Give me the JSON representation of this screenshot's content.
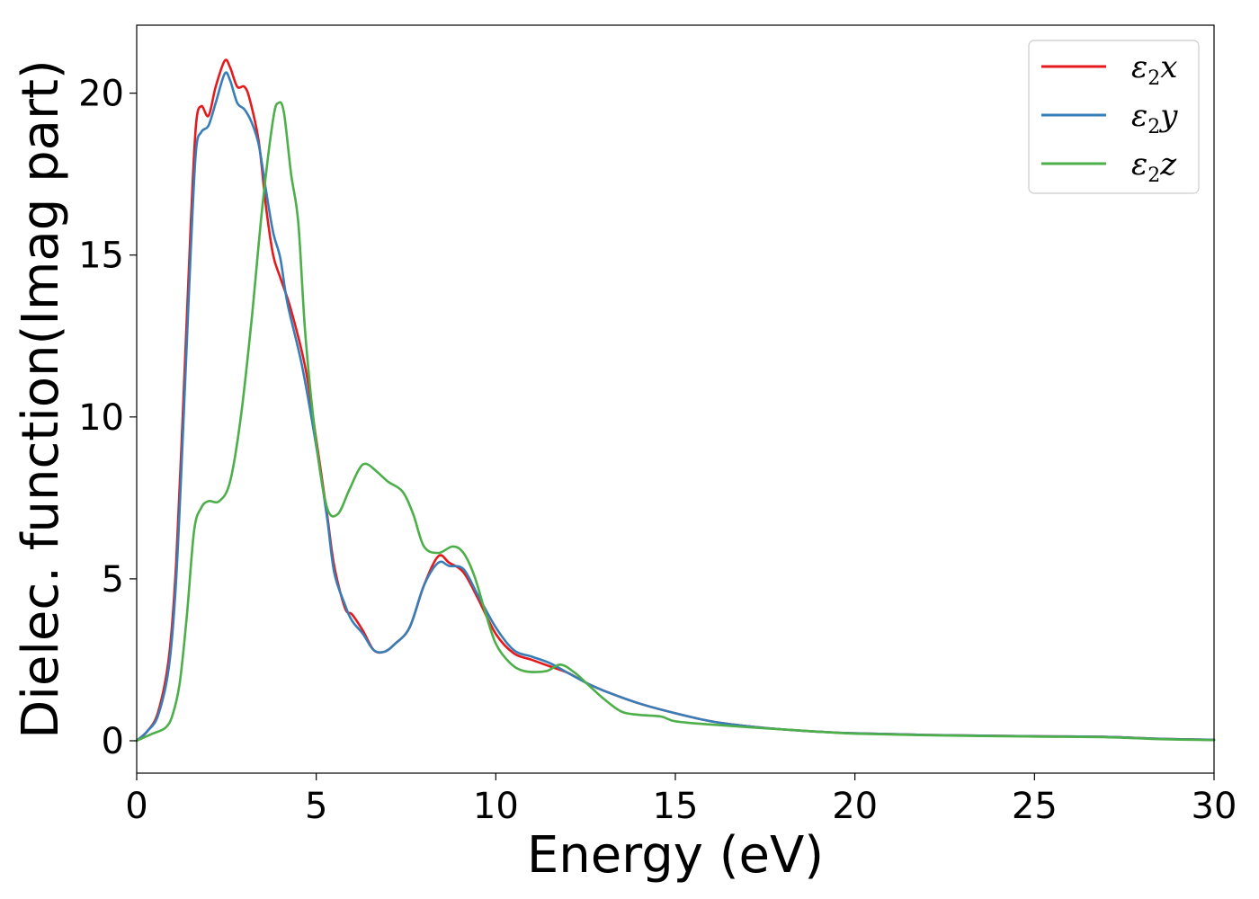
{
  "chart_data": {
    "type": "line",
    "title": "",
    "xlabel": "Energy (eV)",
    "ylabel": "Dielec. function(Imag part)",
    "xlim": [
      0,
      30
    ],
    "ylim": [
      -1,
      22.1
    ],
    "xticks": [
      0,
      5,
      10,
      15,
      20,
      25,
      30
    ],
    "yticks": [
      0,
      5,
      10,
      15,
      20
    ],
    "grid": false,
    "legend_position": "top-right",
    "series": [
      {
        "name": "ε2x",
        "legend_base": "ε",
        "legend_sub": "2",
        "legend_var": "x",
        "color": "#e41a1c",
        "points": [
          [
            0,
            0
          ],
          [
            0.3,
            0.3
          ],
          [
            0.6,
            0.9
          ],
          [
            0.9,
            2.6
          ],
          [
            1.1,
            5.5
          ],
          [
            1.3,
            10.5
          ],
          [
            1.5,
            15.8
          ],
          [
            1.65,
            19.0
          ],
          [
            1.8,
            19.6
          ],
          [
            2.0,
            19.3
          ],
          [
            2.2,
            20.2
          ],
          [
            2.45,
            21.0
          ],
          [
            2.6,
            20.8
          ],
          [
            2.8,
            20.2
          ],
          [
            3.0,
            20.2
          ],
          [
            3.15,
            19.8
          ],
          [
            3.4,
            18.5
          ],
          [
            3.6,
            16.5
          ],
          [
            3.8,
            15.0
          ],
          [
            4.0,
            14.3
          ],
          [
            4.3,
            13.3
          ],
          [
            4.7,
            11.5
          ],
          [
            5.0,
            9.3
          ],
          [
            5.3,
            7.0
          ],
          [
            5.5,
            5.4
          ],
          [
            5.8,
            4.1
          ],
          [
            6.0,
            3.9
          ],
          [
            6.3,
            3.4
          ],
          [
            6.6,
            2.8
          ],
          [
            6.9,
            2.75
          ],
          [
            7.2,
            3.0
          ],
          [
            7.6,
            3.5
          ],
          [
            8.0,
            4.8
          ],
          [
            8.4,
            5.7
          ],
          [
            8.7,
            5.5
          ],
          [
            9.1,
            5.2
          ],
          [
            9.5,
            4.4
          ],
          [
            10.0,
            3.3
          ],
          [
            10.5,
            2.7
          ],
          [
            11.0,
            2.5
          ],
          [
            11.5,
            2.3
          ],
          [
            12.0,
            2.1
          ],
          [
            12.5,
            1.8
          ],
          [
            13.0,
            1.55
          ],
          [
            14.0,
            1.15
          ],
          [
            15.0,
            0.85
          ],
          [
            16.0,
            0.6
          ],
          [
            17.0,
            0.45
          ],
          [
            18.0,
            0.35
          ],
          [
            19.0,
            0.28
          ],
          [
            20.0,
            0.23
          ],
          [
            22.0,
            0.18
          ],
          [
            25.0,
            0.14
          ],
          [
            27.0,
            0.12
          ],
          [
            28.5,
            0.06
          ],
          [
            30.0,
            0.03
          ]
        ]
      },
      {
        "name": "ε2y",
        "legend_base": "ε",
        "legend_sub": "2",
        "legend_var": "y",
        "color": "#377eb8",
        "points": [
          [
            0,
            0
          ],
          [
            0.3,
            0.3
          ],
          [
            0.6,
            0.8
          ],
          [
            0.9,
            2.3
          ],
          [
            1.1,
            5.0
          ],
          [
            1.3,
            9.8
          ],
          [
            1.5,
            15.0
          ],
          [
            1.65,
            18.2
          ],
          [
            1.8,
            18.8
          ],
          [
            2.0,
            19.0
          ],
          [
            2.2,
            19.7
          ],
          [
            2.45,
            20.6
          ],
          [
            2.6,
            20.4
          ],
          [
            2.8,
            19.7
          ],
          [
            3.0,
            19.5
          ],
          [
            3.2,
            19.1
          ],
          [
            3.4,
            18.4
          ],
          [
            3.6,
            17.0
          ],
          [
            3.8,
            15.7
          ],
          [
            4.0,
            14.9
          ],
          [
            4.2,
            13.5
          ],
          [
            4.6,
            11.6
          ],
          [
            5.0,
            9.1
          ],
          [
            5.3,
            6.9
          ],
          [
            5.5,
            5.2
          ],
          [
            5.8,
            4.2
          ],
          [
            6.0,
            3.7
          ],
          [
            6.3,
            3.3
          ],
          [
            6.6,
            2.8
          ],
          [
            6.9,
            2.75
          ],
          [
            7.2,
            3.0
          ],
          [
            7.6,
            3.5
          ],
          [
            8.0,
            4.8
          ],
          [
            8.4,
            5.5
          ],
          [
            8.7,
            5.4
          ],
          [
            9.1,
            5.3
          ],
          [
            9.5,
            4.5
          ],
          [
            10.0,
            3.5
          ],
          [
            10.5,
            2.8
          ],
          [
            11.0,
            2.6
          ],
          [
            11.5,
            2.4
          ],
          [
            12.0,
            2.1
          ],
          [
            12.5,
            1.8
          ],
          [
            13.0,
            1.55
          ],
          [
            14.0,
            1.15
          ],
          [
            15.0,
            0.85
          ],
          [
            16.0,
            0.6
          ],
          [
            17.0,
            0.45
          ],
          [
            18.0,
            0.35
          ],
          [
            19.0,
            0.28
          ],
          [
            20.0,
            0.23
          ],
          [
            22.0,
            0.18
          ],
          [
            25.0,
            0.14
          ],
          [
            27.0,
            0.12
          ],
          [
            28.5,
            0.06
          ],
          [
            30.0,
            0.03
          ]
        ]
      },
      {
        "name": "ε2z",
        "legend_base": "ε",
        "legend_sub": "2",
        "legend_var": "z",
        "color": "#4daf4a",
        "points": [
          [
            0,
            0
          ],
          [
            0.4,
            0.2
          ],
          [
            0.8,
            0.4
          ],
          [
            1.0,
            0.8
          ],
          [
            1.2,
            1.8
          ],
          [
            1.4,
            3.9
          ],
          [
            1.6,
            6.5
          ],
          [
            1.8,
            7.2
          ],
          [
            2.0,
            7.4
          ],
          [
            2.3,
            7.4
          ],
          [
            2.6,
            8.0
          ],
          [
            2.9,
            10.0
          ],
          [
            3.2,
            13.0
          ],
          [
            3.5,
            16.5
          ],
          [
            3.8,
            19.2
          ],
          [
            3.95,
            19.7
          ],
          [
            4.1,
            19.4
          ],
          [
            4.3,
            17.5
          ],
          [
            4.5,
            16.0
          ],
          [
            4.7,
            12.5
          ],
          [
            5.0,
            9.2
          ],
          [
            5.3,
            7.2
          ],
          [
            5.6,
            7.0
          ],
          [
            5.9,
            7.7
          ],
          [
            6.2,
            8.4
          ],
          [
            6.4,
            8.55
          ],
          [
            6.7,
            8.3
          ],
          [
            7.0,
            8.0
          ],
          [
            7.4,
            7.7
          ],
          [
            7.7,
            7.0
          ],
          [
            8.0,
            6.0
          ],
          [
            8.4,
            5.8
          ],
          [
            8.8,
            6.0
          ],
          [
            9.1,
            5.8
          ],
          [
            9.4,
            5.1
          ],
          [
            9.7,
            4.0
          ],
          [
            10.0,
            3.0
          ],
          [
            10.4,
            2.4
          ],
          [
            10.8,
            2.15
          ],
          [
            11.4,
            2.15
          ],
          [
            11.8,
            2.35
          ],
          [
            12.2,
            2.1
          ],
          [
            12.6,
            1.7
          ],
          [
            13.0,
            1.3
          ],
          [
            13.5,
            0.9
          ],
          [
            14.0,
            0.8
          ],
          [
            14.6,
            0.75
          ],
          [
            15.0,
            0.6
          ],
          [
            16.0,
            0.5
          ],
          [
            17.0,
            0.42
          ],
          [
            18.0,
            0.35
          ],
          [
            19.0,
            0.28
          ],
          [
            20.0,
            0.22
          ],
          [
            22.0,
            0.17
          ],
          [
            25.0,
            0.13
          ],
          [
            27.0,
            0.11
          ],
          [
            28.5,
            0.05
          ],
          [
            30.0,
            0.02
          ]
        ]
      }
    ]
  }
}
